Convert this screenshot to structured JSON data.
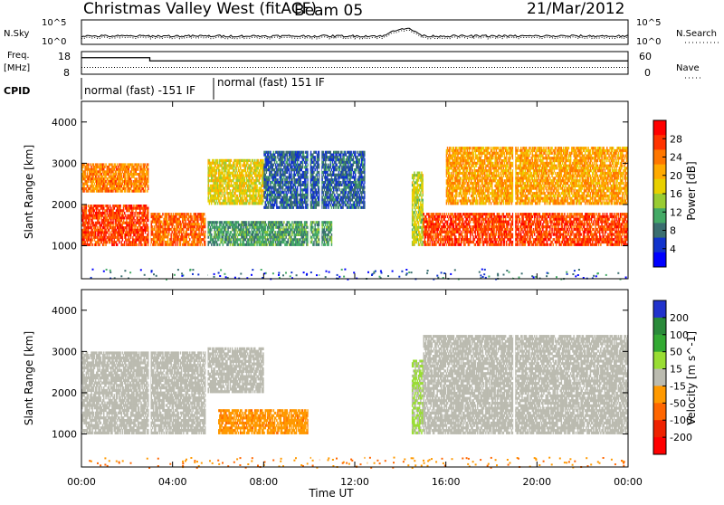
{
  "header": {
    "title": "Christmas Valley West (fitACF)",
    "beam": "Beam 05",
    "date": "21/Mar/2012"
  },
  "top_panel": {
    "nsky_label": "N.Sky",
    "nsearch_label": "N.Search",
    "left_ticks": [
      "10^5",
      "10^0"
    ],
    "right_ticks": [
      "10^5",
      "10^0"
    ]
  },
  "freq_panel": {
    "label_line1": "Freq.",
    "label_line2": "[MHz]",
    "left_ticks": [
      "18",
      "8"
    ],
    "right_ticks": [
      "60",
      "0"
    ],
    "nave_label": "Nave"
  },
  "cpid": {
    "label": "CPID",
    "modes": [
      "normal (fast) -151 IF",
      "normal (fast) 151 IF"
    ]
  },
  "axes": {
    "xlabel": "Time UT",
    "ylabel": "Slant Range [km]",
    "xticks": [
      "00:00",
      "04:00",
      "08:00",
      "12:00",
      "16:00",
      "20:00",
      "00:00"
    ],
    "yticks": [
      "1000",
      "2000",
      "3000",
      "4000"
    ]
  },
  "colorbars": {
    "power": {
      "label": "Power [dB]",
      "ticks": [
        "28",
        "24",
        "20",
        "16",
        "12",
        "8",
        "4"
      ]
    },
    "velocity": {
      "label": "Velocity [m s^-1]",
      "ticks": [
        "200",
        "100",
        "50",
        "15",
        "-15",
        "-50",
        "-100",
        "-200"
      ]
    }
  },
  "colors": {
    "power_scale": [
      "#ff0000",
      "#ff3300",
      "#ff7700",
      "#ffaa00",
      "#e8d000",
      "#99cc33",
      "#44aa66",
      "#3a6e70",
      "#1133cc",
      "#0000ff"
    ],
    "velocity_scale": [
      "#2233cc",
      "#2a8a3a",
      "#33aa33",
      "#99dd33",
      "#bbbbb0",
      "#ff9900",
      "#ff6600",
      "#ee2200",
      "#ff0000"
    ]
  },
  "chart_data": {
    "type": "heatmap",
    "title": "Christmas Valley West (fitACF) Beam 05",
    "xlabel": "Time UT",
    "ylabel": "Slant Range [km]",
    "x_range_hours": [
      0,
      24
    ],
    "y_range_km": [
      200,
      4500
    ],
    "panels": [
      {
        "name": "Power [dB]",
        "colorbar_range": [
          0,
          32
        ],
        "features": [
          {
            "t0": 0.0,
            "t1": 3.0,
            "r0": 1000,
            "r1": 2000,
            "value": 28
          },
          {
            "t0": 0.0,
            "t1": 3.0,
            "r0": 2300,
            "r1": 3000,
            "value": 24
          },
          {
            "t0": 3.0,
            "t1": 5.5,
            "r0": 1000,
            "r1": 1800,
            "value": 26
          },
          {
            "t0": 5.5,
            "t1": 8.0,
            "r0": 2000,
            "r1": 3100,
            "value": 18
          },
          {
            "t0": 5.5,
            "t1": 11.0,
            "r0": 1000,
            "r1": 1600,
            "value": 10
          },
          {
            "t0": 8.0,
            "t1": 12.5,
            "r0": 1900,
            "r1": 3300,
            "value": 6
          },
          {
            "t0": 14.5,
            "t1": 15.0,
            "r0": 1000,
            "r1": 2800,
            "value": 16
          },
          {
            "t0": 15.0,
            "t1": 24.0,
            "r0": 1000,
            "r1": 1800,
            "value": 28
          },
          {
            "t0": 16.0,
            "t1": 24.0,
            "r0": 2000,
            "r1": 3400,
            "value": 22
          }
        ]
      },
      {
        "name": "Velocity [m s^-1]",
        "colorbar_range": [
          -200,
          200
        ],
        "features": [
          {
            "t0": 0.0,
            "t1": 5.5,
            "r0": 1000,
            "r1": 3000,
            "value": 0
          },
          {
            "t0": 5.5,
            "t1": 8.0,
            "r0": 2000,
            "r1": 3100,
            "value": 0
          },
          {
            "t0": 6.0,
            "t1": 10.0,
            "r0": 1000,
            "r1": 1600,
            "value": -60
          },
          {
            "t0": 14.5,
            "t1": 15.0,
            "r0": 1000,
            "r1": 2800,
            "value": 30
          },
          {
            "t0": 15.0,
            "t1": 24.0,
            "r0": 1000,
            "r1": 3400,
            "value": 0
          }
        ]
      }
    ]
  }
}
